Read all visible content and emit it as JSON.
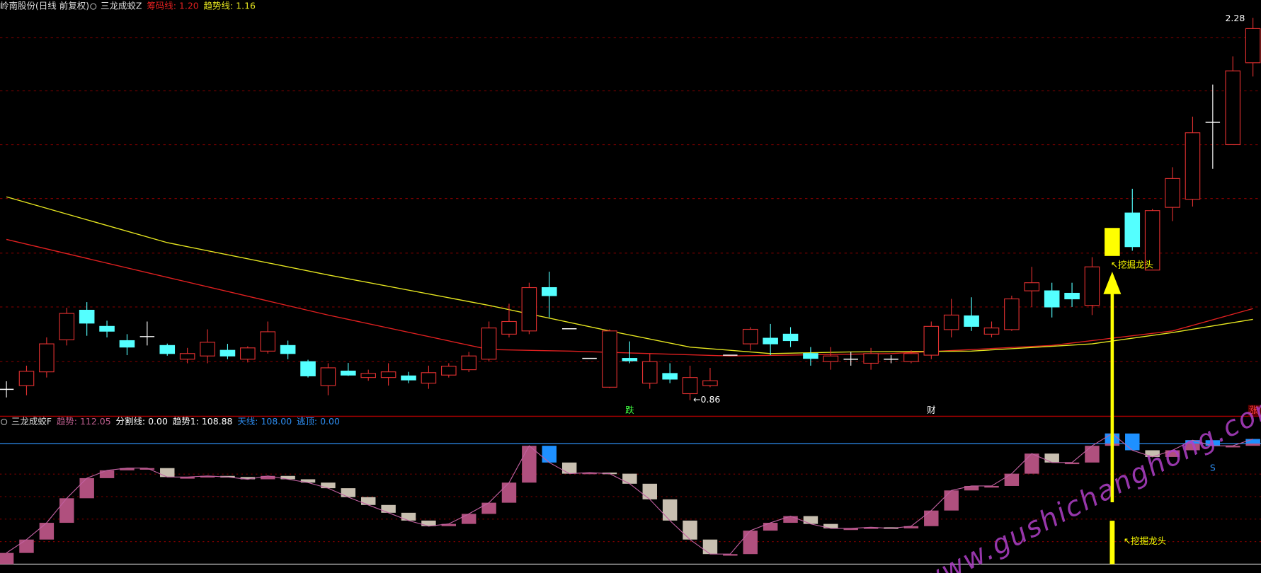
{
  "chart_data": [
    {
      "type": "candlestick",
      "title": "岭南股份(日线 前复权)",
      "indicator_name": "三龙成蛟Z",
      "open": [
        0.9,
        0.914,
        0.965,
        1.084,
        1.194,
        1.134,
        1.081,
        1.096,
        1.063,
        1.012,
        1.024,
        1.045,
        1.012,
        1.042,
        1.063,
        1.003,
        0.914,
        0.968,
        0.944,
        0.944,
        0.95,
        0.923,
        0.953,
        0.973,
        1.012,
        1.105,
        1.117,
        1.278,
        1.125,
        1.015,
        0.908,
        1.015,
        0.923,
        0.959,
        0.884,
        0.914,
        1.027,
        1.069,
        1.09,
        1.105,
        1.033,
        1.003,
        1.012,
        0.997,
        1.012,
        1.003,
        1.027,
        1.122,
        1.173,
        1.105,
        1.122,
        1.266,
        1.266,
        1.257,
        1.212,
        1.397,
        1.555,
        1.343,
        1.576,
        1.606,
        1.892,
        1.809,
        2.113
      ],
      "high": [
        0.93,
        0.988,
        1.093,
        1.203,
        1.224,
        1.155,
        1.105,
        1.152,
        1.07,
        1.054,
        1.123,
        1.069,
        1.06,
        1.152,
        1.081,
        1.01,
        0.997,
        0.998,
        0.973,
        0.997,
        0.965,
        0.988,
        0.997,
        1.039,
        1.152,
        1.218,
        1.296,
        1.337,
        1.125,
        1.015,
        1.123,
        1.078,
        1.033,
        0.997,
        0.988,
        0.98,
        1.027,
        1.131,
        1.143,
        1.131,
        1.057,
        1.057,
        1.039,
        1.054,
        1.027,
        1.045,
        1.152,
        1.236,
        1.242,
        1.152,
        1.248,
        1.355,
        1.296,
        1.296,
        1.391,
        1.498,
        1.645,
        1.57,
        1.725,
        1.913,
        2.032,
        2.137,
        2.28
      ],
      "low": [
        0.87,
        0.878,
        0.944,
        1.063,
        1.099,
        1.093,
        1.027,
        1.063,
        1.025,
        0.997,
        0.997,
        1.012,
        1.0,
        1.033,
        1.012,
        0.944,
        0.878,
        0.95,
        0.932,
        0.914,
        0.923,
        0.902,
        0.944,
        0.964,
        1.003,
        1.093,
        1.105,
        1.167,
        1.125,
        1.015,
        0.905,
        0.997,
        0.902,
        0.923,
        0.86,
        0.908,
        1.027,
        1.045,
        1.027,
        1.057,
        0.988,
        0.973,
        0.988,
        0.973,
        0.997,
        0.997,
        1.012,
        1.093,
        1.117,
        1.093,
        1.117,
        1.206,
        1.167,
        1.206,
        1.176,
        1.397,
        1.415,
        1.343,
        1.525,
        1.579,
        1.719,
        1.809,
        2.062
      ],
      "close": [
        0.9,
        0.967,
        1.069,
        1.182,
        1.146,
        1.116,
        1.057,
        1.096,
        1.033,
        1.033,
        1.075,
        1.024,
        1.054,
        1.114,
        1.033,
        0.95,
        0.98,
        0.953,
        0.959,
        0.965,
        0.935,
        0.962,
        0.986,
        1.024,
        1.128,
        1.152,
        1.278,
        1.248,
        1.125,
        1.015,
        1.117,
        1.006,
        1.003,
        0.938,
        0.944,
        0.932,
        1.027,
        1.123,
        1.069,
        1.081,
        1.015,
        1.024,
        1.012,
        1.033,
        1.012,
        1.033,
        1.134,
        1.176,
        1.134,
        1.128,
        1.236,
        1.296,
        1.206,
        1.236,
        1.355,
        1.498,
        1.43,
        1.564,
        1.683,
        1.853,
        1.892,
        2.083,
        2.24
      ],
      "up_color": "#e03030",
      "down_color": "#54ffff",
      "flat_color": "#ffffff",
      "highlight": {
        "index": 55,
        "color": "#ffff00"
      },
      "ylim": [
        0.809,
        2.346
      ],
      "series": [
        {
          "label": "筹码线: 1.20",
          "color": "#e02020",
          "x": [
            0,
            8,
            16,
            24,
            28,
            36,
            44,
            52,
            58,
            62
          ],
          "values": [
            1.457,
            1.316,
            1.176,
            1.048,
            1.042,
            1.024,
            1.033,
            1.063,
            1.117,
            1.2
          ]
        },
        {
          "label": "趋势线: 1.16",
          "color": "#e6e620",
          "x": [
            0,
            8,
            16,
            24,
            30,
            34,
            38,
            42,
            48,
            54,
            58,
            62
          ],
          "values": [
            1.615,
            1.445,
            1.325,
            1.212,
            1.117,
            1.057,
            1.033,
            1.039,
            1.042,
            1.069,
            1.111,
            1.16
          ]
        }
      ],
      "annotations": [
        {
          "text": "←0.86",
          "index": 34,
          "value": 0.86,
          "color": "#ffffff",
          "position": "right"
        },
        {
          "text": "2.28",
          "index": 62,
          "value": 2.28,
          "color": "#ffffff",
          "position": "left"
        },
        {
          "text": "跌",
          "index": 31,
          "color": "#40ff40",
          "position": "bottom"
        },
        {
          "text": "财",
          "index": 46,
          "color": "#ffffff",
          "position": "bottom"
        },
        {
          "text": "↖挖掘龙头",
          "index": 55,
          "color": "#ffff00",
          "position": "below"
        },
        {
          "text": "涨",
          "index": 62,
          "color": "#ff4040",
          "position": "bottom"
        }
      ]
    },
    {
      "type": "bar",
      "title": "三龙成蛟F",
      "legend": [
        {
          "text": "趋势: 112.05",
          "color": "#c06090"
        },
        {
          "text": "分割线: 0.00",
          "color": "#ffffff"
        },
        {
          "text": "趋势1: 108.88",
          "color": "#ffffff"
        },
        {
          "text": "天线: 108.00",
          "color": "#2d8cf0"
        },
        {
          "text": "逃顶: 0.00",
          "color": "#2d8cf0"
        }
      ],
      "values": [
        10,
        22,
        37,
        59,
        77,
        84,
        86,
        86,
        78,
        78,
        79,
        78,
        76,
        79,
        76,
        73,
        68,
        60,
        53,
        46,
        39,
        34,
        36,
        45,
        55,
        73,
        106,
        91,
        81,
        82,
        81,
        72,
        58,
        39,
        22,
        9,
        9,
        30,
        37,
        43,
        36,
        32,
        32,
        33,
        32,
        34,
        48,
        66,
        70,
        70,
        81,
        99,
        91,
        91,
        106,
        117,
        102,
        96,
        102,
        111,
        106,
        106,
        112.05
      ],
      "up_color": "#b0507e",
      "down_color": "#c8bfb0",
      "top_color": "#1e90ff",
      "line_color": "#c060a0",
      "ylim": [
        -7.2,
        123.8
      ],
      "ref_lines": [
        {
          "value": 108,
          "color": "#2d8cf0"
        },
        {
          "value": 0,
          "color": "#dddddd"
        }
      ],
      "annotations": [
        {
          "text": "↖挖掘龙头",
          "index": 55,
          "color": "#ffff00",
          "position": "bottom"
        },
        {
          "text": "S",
          "index": 60,
          "value": 106,
          "color": "#2d8cf0",
          "position": "below"
        }
      ],
      "watermark": "www.gushichanghong.com"
    }
  ]
}
